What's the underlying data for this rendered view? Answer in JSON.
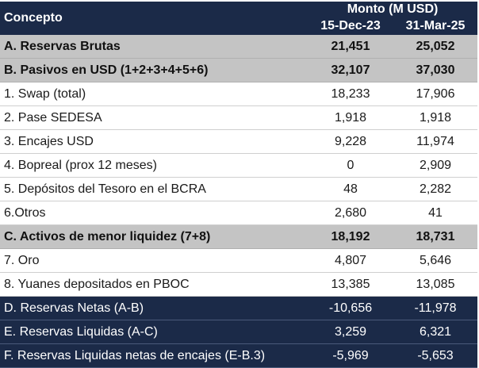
{
  "header": {
    "concept_label": "Concepto",
    "group_label": "Monto (M USD)",
    "columns": [
      "15-Dec-23",
      "31-Mar-25"
    ]
  },
  "rows": [
    {
      "label": "A. Reservas Brutas",
      "v1": "21,451",
      "v2": "25,052",
      "style": "section"
    },
    {
      "label": "B. Pasivos en USD (1+2+3+4+5+6)",
      "v1": "32,107",
      "v2": "37,030",
      "style": "section"
    },
    {
      "label": "1. Swap (total)",
      "v1": "18,233",
      "v2": "17,906",
      "style": "plain"
    },
    {
      "label": "2. Pase SEDESA",
      "v1": "1,918",
      "v2": "1,918",
      "style": "plain"
    },
    {
      "label": "3. Encajes USD",
      "v1": "9,228",
      "v2": "11,974",
      "style": "plain"
    },
    {
      "label": "4. Bopreal (prox 12 meses)",
      "v1": "0",
      "v2": "2,909",
      "style": "plain"
    },
    {
      "label": "5. Depósitos del Tesoro en el BCRA",
      "v1": "48",
      "v2": "2,282",
      "style": "plain"
    },
    {
      "label": "6.Otros",
      "v1": "2,680",
      "v2": "41",
      "style": "plain"
    },
    {
      "label": "C. Activos de menor liquidez (7+8)",
      "v1": "18,192",
      "v2": "18,731",
      "style": "section"
    },
    {
      "label": "7. Oro",
      "v1": "4,807",
      "v2": "5,646",
      "style": "plain"
    },
    {
      "label": "8. Yuanes depositados en PBOC",
      "v1": "13,385",
      "v2": "13,085",
      "style": "plain"
    },
    {
      "label": "D. Reservas Netas (A-B)",
      "v1": "-10,656",
      "v2": "-11,978",
      "style": "dark"
    },
    {
      "label": "E. Reservas Liquidas (A-C)",
      "v1": "3,259",
      "v2": "6,321",
      "style": "dark"
    },
    {
      "label": "F. Reservas Liquidas netas de encajes (E-B.3)",
      "v1": "-5,969",
      "v2": "-5,653",
      "style": "dark"
    }
  ],
  "colors": {
    "header_bg": "#1b2a48",
    "section_bg": "#c4c4c4",
    "dark_bg": "#1b2a48"
  }
}
